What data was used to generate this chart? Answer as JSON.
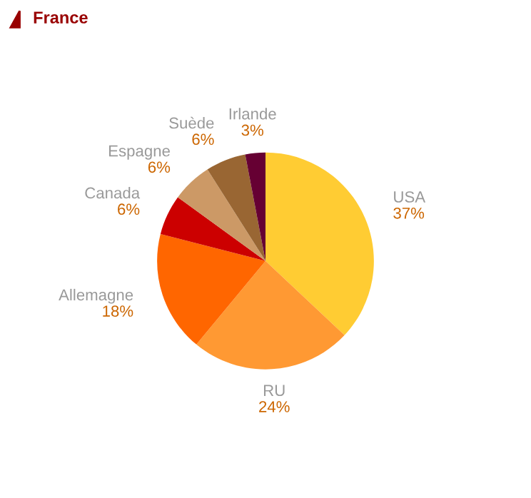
{
  "chart_data": {
    "type": "pie",
    "title": "France",
    "categories": [
      "USA",
      "RU",
      "Allemagne",
      "Canada",
      "Espagne",
      "Suède",
      "Irlande"
    ],
    "values": [
      37,
      24,
      18,
      6,
      6,
      6,
      3
    ],
    "value_labels": [
      "37%",
      "24%",
      "18%",
      "6%",
      "6%",
      "6%",
      "3%"
    ],
    "colors": [
      "#ffcc33",
      "#ff9933",
      "#ff6600",
      "#cc0000",
      "#cc9966",
      "#996633",
      "#660033"
    ],
    "legend": false
  }
}
